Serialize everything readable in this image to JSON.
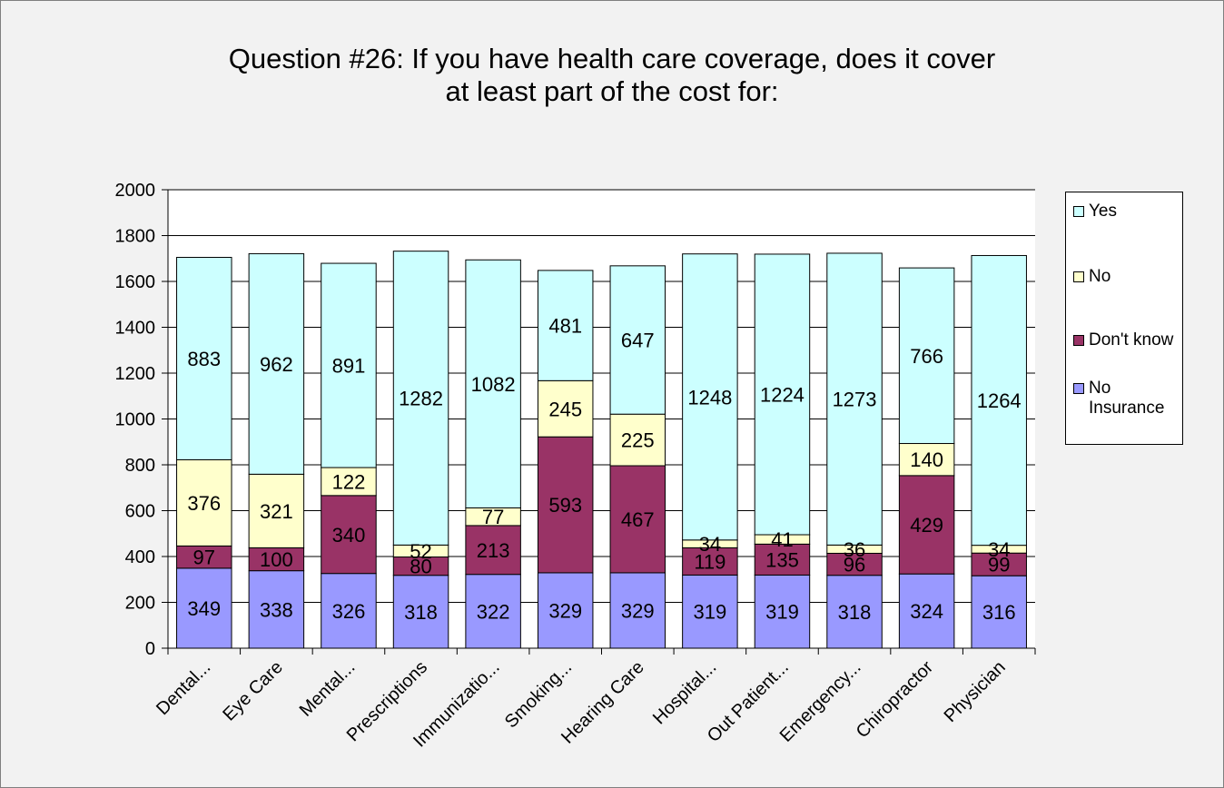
{
  "chart_data": {
    "type": "bar",
    "stacked": true,
    "title": [
      "Question #26:  If you have health care coverage, does it cover",
      "at least part of the cost for:"
    ],
    "xlabel": "",
    "ylabel": "",
    "categories": [
      "Dental...",
      "Eye Care",
      "Mental...",
      "Prescriptions",
      "Immunizatio...",
      "Smoking...",
      "Hearing Care",
      "Hospital...",
      "Out Patient...",
      "Emergency...",
      "Chiropractor",
      "Physician"
    ],
    "ylim": [
      0,
      2000
    ],
    "yticks": [
      "0",
      "200",
      "400",
      "600",
      "800",
      "1000",
      "1200",
      "1400",
      "1600",
      "1800",
      "2000"
    ],
    "grid": true,
    "legend_position": "right",
    "series": [
      {
        "name": "No Insurance",
        "color": "#9999ff",
        "values": [
          349,
          338,
          326,
          318,
          322,
          329,
          329,
          319,
          319,
          318,
          324,
          316
        ]
      },
      {
        "name": "Don't know",
        "color": "#993366",
        "values": [
          97,
          100,
          340,
          80,
          213,
          593,
          467,
          119,
          135,
          96,
          429,
          99
        ]
      },
      {
        "name": "No",
        "color": "#ffffcc",
        "values": [
          376,
          321,
          122,
          52,
          77,
          245,
          225,
          34,
          41,
          36,
          140,
          34
        ]
      },
      {
        "name": "Yes",
        "color": "#ccffff",
        "values": [
          883,
          962,
          891,
          1282,
          1082,
          481,
          647,
          1248,
          1224,
          1273,
          766,
          1264
        ]
      }
    ],
    "legend_order": [
      3,
      2,
      1,
      0
    ]
  }
}
